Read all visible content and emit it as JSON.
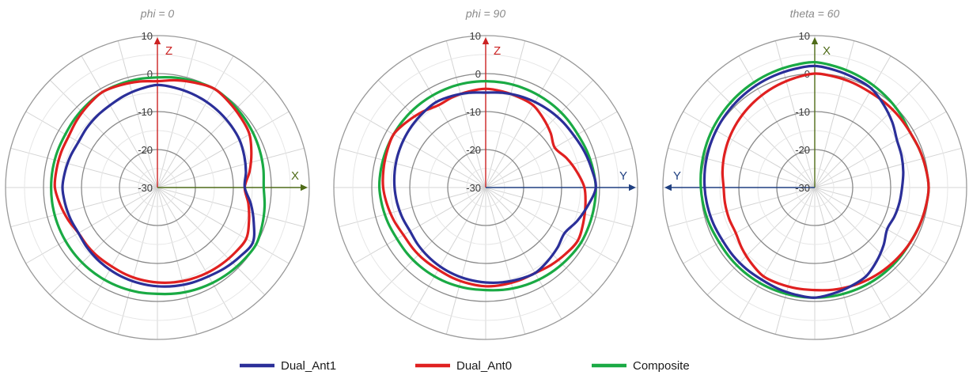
{
  "chart_data": [
    {
      "type": "polar",
      "title": "phi = 0",
      "radial_ticks": [
        10,
        0,
        -10,
        -20,
        -30
      ],
      "rlim": [
        -30,
        10
      ],
      "axes": [
        {
          "label": "Z",
          "direction": "up",
          "color": "#cc2222"
        },
        {
          "label": "X",
          "direction": "right",
          "color": "#4f6b18"
        }
      ],
      "series": [
        {
          "name": "Dual_Ant1",
          "color": "#2b2f99",
          "angle_deg": [
            0,
            30,
            60,
            90,
            120,
            150,
            180,
            210,
            240,
            270,
            300,
            330
          ],
          "values": [
            -3,
            -4,
            -5,
            -7,
            -1,
            -3,
            -4,
            -5,
            -6,
            -5,
            -6,
            -5
          ]
        },
        {
          "name": "Dual_Ant0",
          "color": "#e02020",
          "angle_deg": [
            0,
            30,
            60,
            90,
            120,
            150,
            180,
            210,
            240,
            270,
            300,
            330
          ],
          "values": [
            -2,
            0,
            -2,
            -7,
            -3,
            -4,
            -5,
            -6,
            -6,
            -3,
            -3,
            -1
          ]
        },
        {
          "name": "Composite",
          "color": "#1aaa44",
          "angle_deg": [
            0,
            30,
            60,
            90,
            120,
            150,
            180,
            210,
            240,
            270,
            300,
            330
          ],
          "values": [
            -1,
            0,
            -1,
            -2,
            0,
            -1,
            -2,
            -2,
            -2,
            -2,
            -2,
            -1
          ]
        }
      ]
    },
    {
      "type": "polar",
      "title": "phi = 90",
      "radial_ticks": [
        10,
        0,
        -10,
        -20,
        -30
      ],
      "rlim": [
        -30,
        10
      ],
      "axes": [
        {
          "label": "Z",
          "direction": "up",
          "color": "#cc2222"
        },
        {
          "label": "Y",
          "direction": "right",
          "color": "#1f3f80"
        }
      ],
      "series": [
        {
          "name": "Dual_Ant1",
          "color": "#2b2f99",
          "angle_deg": [
            0,
            30,
            60,
            90,
            120,
            150,
            180,
            210,
            240,
            270,
            300,
            330
          ],
          "values": [
            -5,
            -4,
            -3,
            -1,
            -6,
            -4,
            -5,
            -6,
            -7,
            -6,
            -5,
            -4
          ]
        },
        {
          "name": "Dual_Ant0",
          "color": "#e02020",
          "angle_deg": [
            0,
            30,
            60,
            90,
            120,
            150,
            180,
            210,
            240,
            270,
            300,
            330
          ],
          "values": [
            -4,
            -5,
            -9,
            -4,
            -2,
            -4,
            -4,
            -5,
            -5,
            -3,
            -2,
            -5
          ]
        },
        {
          "name": "Composite",
          "color": "#1aaa44",
          "angle_deg": [
            0,
            30,
            60,
            90,
            120,
            150,
            180,
            210,
            240,
            270,
            300,
            330
          ],
          "values": [
            -2,
            -2,
            -2,
            -1,
            -1,
            -2,
            -3,
            -3,
            -3,
            -2,
            -2,
            -2
          ]
        }
      ]
    },
    {
      "type": "polar",
      "title": "theta = 60",
      "radial_ticks": [
        10,
        0,
        -10,
        -20,
        -30
      ],
      "rlim": [
        -30,
        10
      ],
      "axes": [
        {
          "label": "X",
          "direction": "up",
          "color": "#4f6b18"
        },
        {
          "label": "Y",
          "direction": "left",
          "color": "#1f3f80"
        }
      ],
      "series": [
        {
          "name": "Dual_Ant1",
          "color": "#2b2f99",
          "angle_deg": [
            0,
            30,
            60,
            90,
            120,
            150,
            180,
            210,
            240,
            270,
            300,
            330
          ],
          "values": [
            2,
            0,
            -5,
            -7,
            -8,
            -3,
            -1,
            -2,
            -2,
            -1,
            0,
            1
          ]
        },
        {
          "name": "Dual_Ant0",
          "color": "#e02020",
          "angle_deg": [
            0,
            30,
            60,
            90,
            120,
            150,
            180,
            210,
            240,
            270,
            300,
            330
          ],
          "values": [
            0,
            -1,
            -1,
            0,
            -1,
            -2,
            -3,
            -3,
            -6,
            -6,
            -4,
            -2
          ]
        },
        {
          "name": "Composite",
          "color": "#1aaa44",
          "angle_deg": [
            0,
            30,
            60,
            90,
            120,
            150,
            180,
            210,
            240,
            270,
            300,
            330
          ],
          "values": [
            3,
            1,
            -1,
            0,
            -1,
            -1,
            -1,
            -1,
            -1,
            0,
            1,
            2
          ]
        }
      ]
    }
  ],
  "legend": [
    {
      "name": "Dual_Ant1",
      "color": "#2b2f99"
    },
    {
      "name": "Dual_Ant0",
      "color": "#e02020"
    },
    {
      "name": "Composite",
      "color": "#1aaa44"
    }
  ]
}
